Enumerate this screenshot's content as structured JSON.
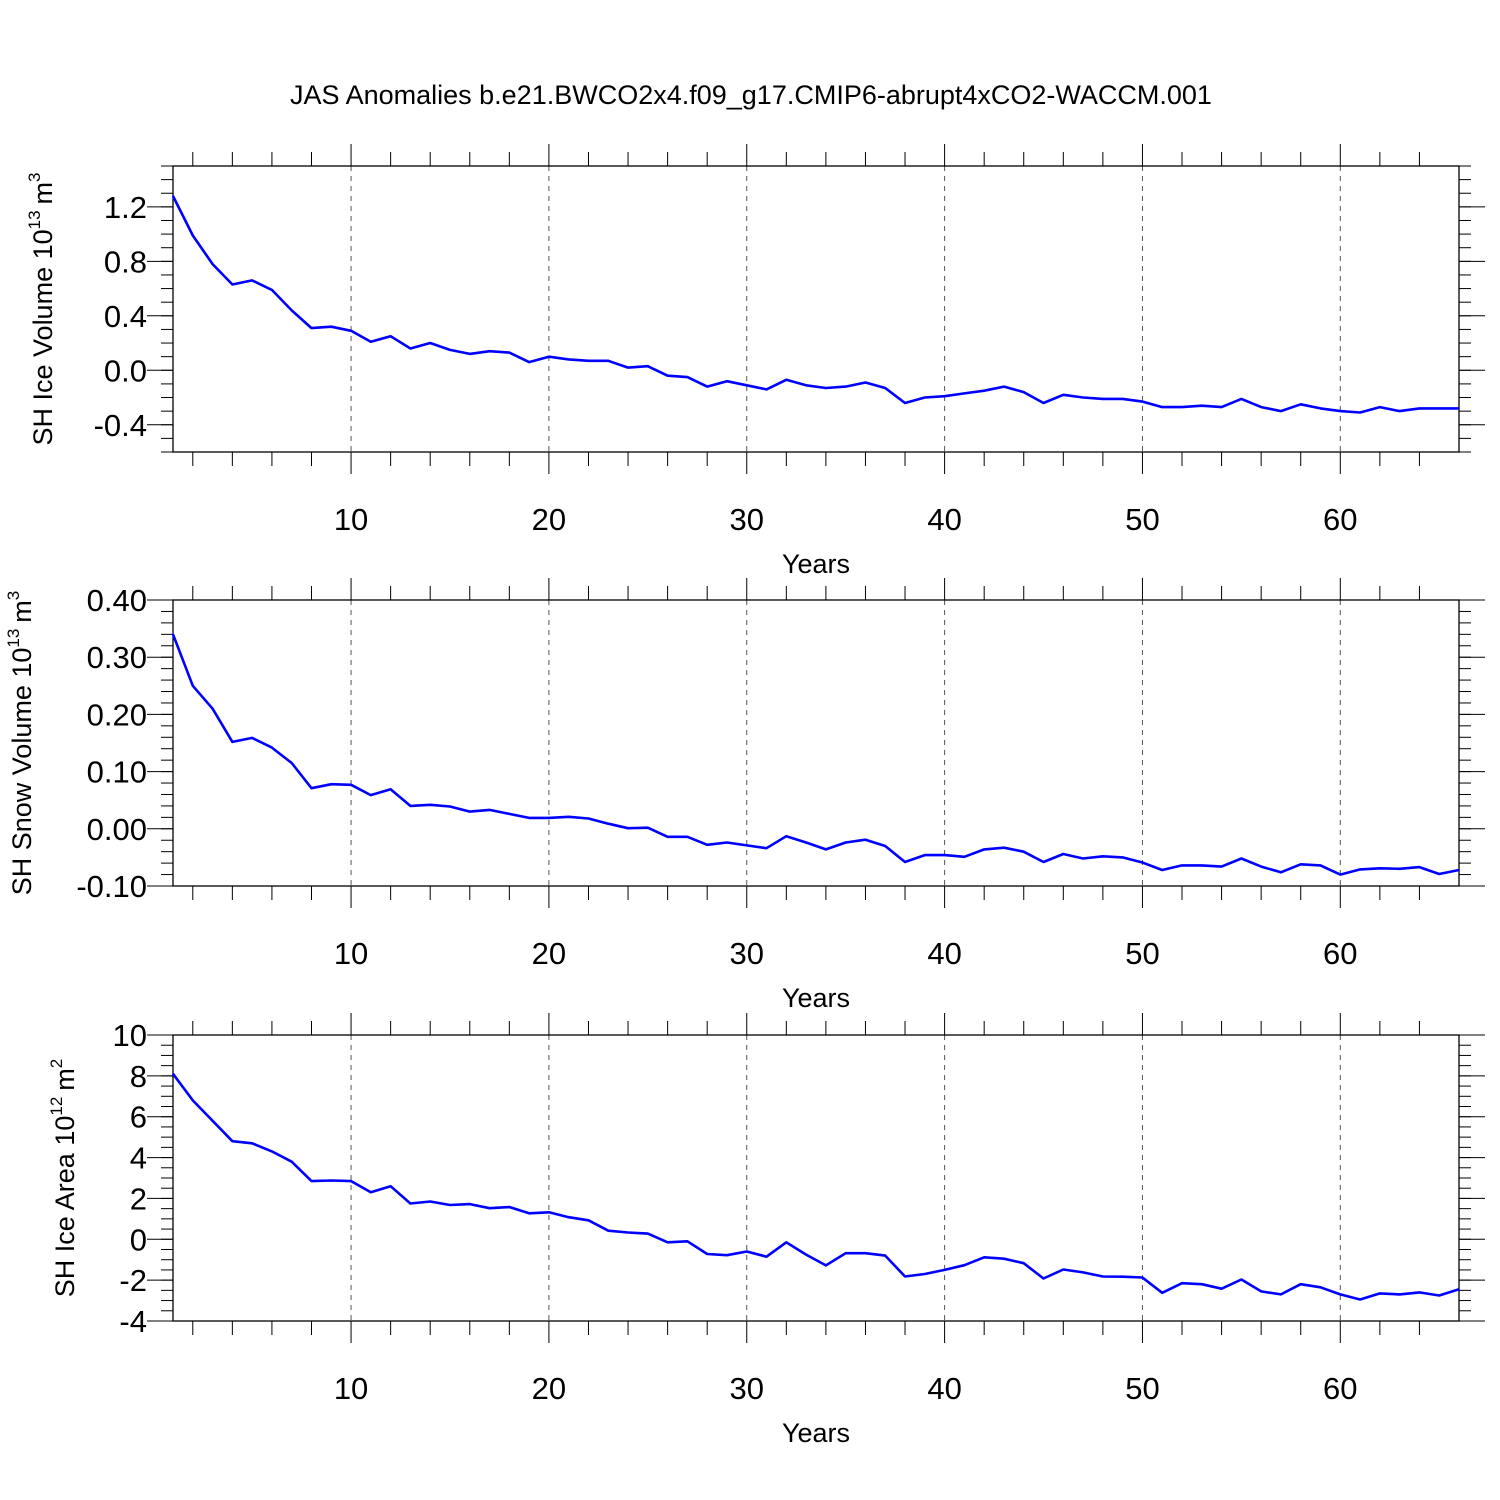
{
  "title": "JAS Anomalies b.e21.BWCO2x4.f09_g17.CMIP6-abrupt4xCO2-WACCM.001",
  "line_color": "#0000ff",
  "chart_data": [
    {
      "type": "line",
      "ylabel_main": "SH Ice Volume 10",
      "ylabel_exp": "13",
      "ylabel_unit": "m",
      "ylabel_unit_exp": "3",
      "xlabel": "Years",
      "xlim": [
        1,
        66
      ],
      "ylim": [
        -0.6,
        1.5
      ],
      "yticks": [
        -0.4,
        0.0,
        0.4,
        0.8,
        1.2
      ],
      "ytick_labels": [
        "-0.4",
        "0.0",
        "0.4",
        "0.8",
        "1.2"
      ],
      "yminor_step": 0.1,
      "xticks": [
        10,
        20,
        30,
        40,
        50,
        60
      ],
      "xtick_labels": [
        "10",
        "20",
        "30",
        "40",
        "50",
        "60"
      ],
      "grid": "x-dashed",
      "series": [
        {
          "name": "SH Ice Volume",
          "values": [
            1.28,
            0.99,
            0.78,
            0.63,
            0.66,
            0.59,
            0.44,
            0.31,
            0.32,
            0.29,
            0.21,
            0.25,
            0.16,
            0.2,
            0.15,
            0.12,
            0.14,
            0.13,
            0.06,
            0.1,
            0.08,
            0.07,
            0.07,
            0.02,
            0.03,
            -0.04,
            -0.05,
            -0.12,
            -0.08,
            -0.11,
            -0.14,
            -0.07,
            -0.11,
            -0.13,
            -0.12,
            -0.09,
            -0.13,
            -0.24,
            -0.2,
            -0.19,
            -0.17,
            -0.15,
            -0.12,
            -0.16,
            -0.24,
            -0.18,
            -0.2,
            -0.21,
            -0.21,
            -0.23,
            -0.27,
            -0.27,
            -0.26,
            -0.27,
            -0.21,
            -0.27,
            -0.3,
            -0.25,
            -0.28,
            -0.3,
            -0.31,
            -0.27,
            -0.3,
            -0.28,
            -0.28,
            -0.28
          ]
        }
      ]
    },
    {
      "type": "line",
      "ylabel_main": "SH Snow Volume 10",
      "ylabel_exp": "13",
      "ylabel_unit": "m",
      "ylabel_unit_exp": "3",
      "xlabel": "Years",
      "xlim": [
        1,
        66
      ],
      "ylim": [
        -0.1,
        0.4
      ],
      "yticks": [
        -0.1,
        0.0,
        0.1,
        0.2,
        0.3,
        0.4
      ],
      "ytick_labels": [
        "-0.10",
        "0.00",
        "0.10",
        "0.20",
        "0.30",
        "0.40"
      ],
      "yminor_step": 0.02,
      "xticks": [
        10,
        20,
        30,
        40,
        50,
        60
      ],
      "xtick_labels": [
        "10",
        "20",
        "30",
        "40",
        "50",
        "60"
      ],
      "grid": "x-dashed",
      "series": [
        {
          "name": "SH Snow Volume",
          "values": [
            0.34,
            0.25,
            0.21,
            0.152,
            0.159,
            0.142,
            0.115,
            0.071,
            0.078,
            0.077,
            0.059,
            0.069,
            0.04,
            0.042,
            0.039,
            0.03,
            0.033,
            0.026,
            0.019,
            0.019,
            0.021,
            0.018,
            0.009,
            0.001,
            0.002,
            -0.014,
            -0.014,
            -0.028,
            -0.024,
            -0.029,
            -0.034,
            -0.013,
            -0.024,
            -0.036,
            -0.024,
            -0.019,
            -0.03,
            -0.058,
            -0.046,
            -0.046,
            -0.049,
            -0.036,
            -0.033,
            -0.04,
            -0.058,
            -0.044,
            -0.052,
            -0.048,
            -0.05,
            -0.059,
            -0.072,
            -0.064,
            -0.064,
            -0.066,
            -0.052,
            -0.066,
            -0.076,
            -0.062,
            -0.064,
            -0.08,
            -0.071,
            -0.069,
            -0.07,
            -0.067,
            -0.079,
            -0.072
          ]
        }
      ]
    },
    {
      "type": "line",
      "ylabel_main": "SH Ice Area 10",
      "ylabel_exp": "12",
      "ylabel_unit": "m",
      "ylabel_unit_exp": "2",
      "xlabel": "Years",
      "xlim": [
        1,
        66
      ],
      "ylim": [
        -4,
        10
      ],
      "yticks": [
        -4,
        -2,
        0,
        2,
        4,
        6,
        8,
        10
      ],
      "ytick_labels": [
        "-4",
        "-2",
        "0",
        "2",
        "4",
        "6",
        "8",
        "10"
      ],
      "yminor_step": 0.5,
      "xticks": [
        10,
        20,
        30,
        40,
        50,
        60
      ],
      "xtick_labels": [
        "10",
        "20",
        "30",
        "40",
        "50",
        "60"
      ],
      "grid": "x-dashed",
      "series": [
        {
          "name": "SH Ice Area",
          "values": [
            8.1,
            6.8,
            5.8,
            4.8,
            4.7,
            4.3,
            3.8,
            2.85,
            2.88,
            2.85,
            2.3,
            2.6,
            1.75,
            1.85,
            1.68,
            1.72,
            1.52,
            1.58,
            1.27,
            1.32,
            1.08,
            0.93,
            0.42,
            0.33,
            0.28,
            -0.15,
            -0.1,
            -0.72,
            -0.78,
            -0.6,
            -0.85,
            -0.15,
            -0.75,
            -1.28,
            -0.68,
            -0.68,
            -0.8,
            -1.82,
            -1.7,
            -1.5,
            -1.27,
            -0.88,
            -0.95,
            -1.17,
            -1.92,
            -1.48,
            -1.62,
            -1.82,
            -1.83,
            -1.87,
            -2.62,
            -2.15,
            -2.2,
            -2.42,
            -1.97,
            -2.55,
            -2.7,
            -2.2,
            -2.35,
            -2.7,
            -2.95,
            -2.65,
            -2.7,
            -2.6,
            -2.75,
            -2.45
          ]
        }
      ]
    }
  ]
}
